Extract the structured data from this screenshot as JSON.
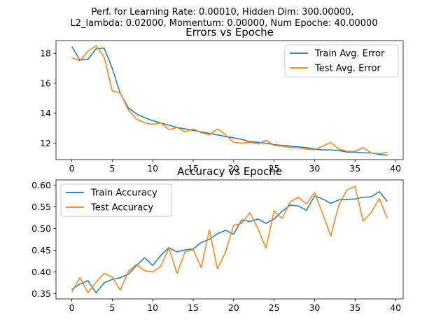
{
  "figure": {
    "suptitle_line1": "Perf. for Learning Rate: 0.00010, Hidden Dim: 300.00000,",
    "suptitle_line2": "L2_lambda: 0.02000, Momentum: 0.00000, Num Epoche: 40.00000"
  },
  "colors": {
    "train": "#1f77b4",
    "test": "#ff7f0e"
  },
  "chart_data": [
    {
      "type": "line",
      "title": "Errors vs Epoche",
      "xlabel": "",
      "ylabel": "",
      "xlim": [
        -1.95,
        40.95
      ],
      "ylim": [
        10.9,
        18.85
      ],
      "xticks": [
        0,
        5,
        10,
        15,
        20,
        25,
        30,
        35,
        40
      ],
      "yticks": [
        12,
        14,
        16,
        18
      ],
      "legend_position": "top-right",
      "x": [
        0,
        1,
        2,
        3,
        4,
        5,
        6,
        7,
        8,
        9,
        10,
        11,
        12,
        13,
        14,
        15,
        16,
        17,
        18,
        19,
        20,
        21,
        22,
        23,
        24,
        25,
        26,
        27,
        28,
        29,
        30,
        31,
        32,
        33,
        34,
        35,
        36,
        37,
        38,
        39
      ],
      "series": [
        {
          "name": "Train Avg. Error",
          "values": [
            18.45,
            17.55,
            17.6,
            18.3,
            18.35,
            17.0,
            15.3,
            14.35,
            13.95,
            13.7,
            13.5,
            13.35,
            13.2,
            13.05,
            12.95,
            12.85,
            12.75,
            12.65,
            12.55,
            12.45,
            12.35,
            12.25,
            12.1,
            12.05,
            12.0,
            11.9,
            11.85,
            11.8,
            11.75,
            11.7,
            11.6,
            11.55,
            11.55,
            11.5,
            11.4,
            11.4,
            11.35,
            11.35,
            11.25,
            11.2
          ]
        },
        {
          "name": "Test Avg. Error",
          "values": [
            17.7,
            17.5,
            18.15,
            18.5,
            17.75,
            15.5,
            15.35,
            14.2,
            13.6,
            13.35,
            13.25,
            13.35,
            12.9,
            13.05,
            12.75,
            12.95,
            12.7,
            12.55,
            12.95,
            12.55,
            12.05,
            12.0,
            12.05,
            11.95,
            12.2,
            11.85,
            11.8,
            11.7,
            11.7,
            11.6,
            11.55,
            11.8,
            12.05,
            11.6,
            11.45,
            11.45,
            11.7,
            11.35,
            11.3,
            11.4
          ]
        }
      ]
    },
    {
      "type": "line",
      "title": "Accuracy vs Epoche",
      "xlabel": "",
      "ylabel": "",
      "xlim": [
        -1.95,
        40.95
      ],
      "ylim": [
        0.338,
        0.612
      ],
      "xticks": [
        0,
        5,
        10,
        15,
        20,
        25,
        30,
        35,
        40
      ],
      "yticks": [
        0.35,
        0.4,
        0.45,
        0.5,
        0.55,
        0.6
      ],
      "ytick_labels": [
        "0.35",
        "0.40",
        "0.45",
        "0.50",
        "0.55",
        "0.60"
      ],
      "legend_position": "top-left",
      "x": [
        0,
        1,
        2,
        3,
        4,
        5,
        6,
        7,
        8,
        9,
        10,
        11,
        12,
        13,
        14,
        15,
        16,
        17,
        18,
        19,
        20,
        21,
        22,
        23,
        24,
        25,
        26,
        27,
        28,
        29,
        30,
        31,
        32,
        33,
        34,
        35,
        36,
        37,
        38,
        39
      ],
      "series": [
        {
          "name": "Train Accuracy",
          "values": [
            0.36,
            0.372,
            0.38,
            0.352,
            0.375,
            0.383,
            0.387,
            0.395,
            0.415,
            0.433,
            0.415,
            0.438,
            0.456,
            0.446,
            0.451,
            0.453,
            0.468,
            0.475,
            0.488,
            0.496,
            0.487,
            0.52,
            0.516,
            0.522,
            0.512,
            0.522,
            0.54,
            0.554,
            0.552,
            0.542,
            0.575,
            0.568,
            0.558,
            0.566,
            0.567,
            0.568,
            0.572,
            0.573,
            0.585,
            0.562
          ]
        },
        {
          "name": "Test Accuracy",
          "values": [
            0.353,
            0.387,
            0.352,
            0.376,
            0.397,
            0.388,
            0.358,
            0.402,
            0.417,
            0.403,
            0.4,
            0.413,
            0.455,
            0.397,
            0.446,
            0.452,
            0.41,
            0.497,
            0.407,
            0.446,
            0.507,
            0.512,
            0.537,
            0.5,
            0.455,
            0.541,
            0.523,
            0.562,
            0.572,
            0.556,
            0.583,
            0.534,
            0.483,
            0.554,
            0.589,
            0.597,
            0.517,
            0.537,
            0.569,
            0.523
          ]
        }
      ]
    }
  ]
}
